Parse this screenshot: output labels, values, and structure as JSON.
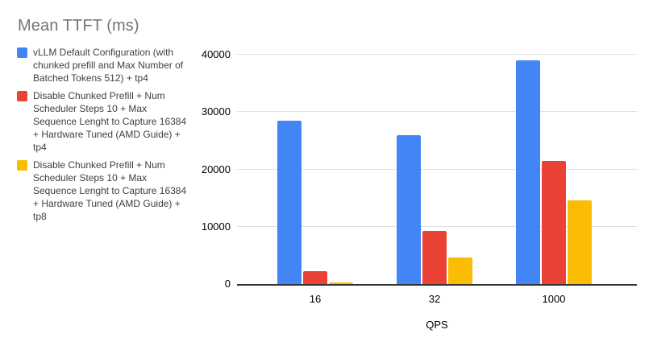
{
  "chart_data": {
    "type": "bar",
    "title": "Mean TTFT (ms)",
    "xlabel": "QPS",
    "ylabel": "",
    "categories": [
      "16",
      "32",
      "1000"
    ],
    "series": [
      {
        "name": "vLLM Default Configuration (with chunked prefill and Max Number of Batched Tokens 512) + tp4",
        "color": "#4285F4",
        "values": [
          28500,
          26000,
          39000
        ]
      },
      {
        "name": "Disable Chunked Prefill + Num Scheduler Steps 10 + Max Sequence Lenght to Capture 16384 + Hardware Tuned (AMD Guide) + tp4",
        "color": "#EA4335",
        "values": [
          2200,
          9300,
          21500
        ]
      },
      {
        "name": "Disable Chunked Prefill + Num Scheduler Steps 10 + Max Sequence Lenght to Capture 16384 + Hardware Tuned (AMD Guide) + tp8",
        "color": "#FBBC04",
        "values": [
          250,
          4600,
          14600
        ]
      }
    ],
    "ylim": [
      0,
      40000
    ],
    "yticks": [
      0,
      10000,
      20000,
      30000,
      40000
    ],
    "grid": true,
    "legend_position": "left",
    "background_color": "#ffffff",
    "axis_line_color": "#333333",
    "gridline_color": "#e0e0e0"
  }
}
